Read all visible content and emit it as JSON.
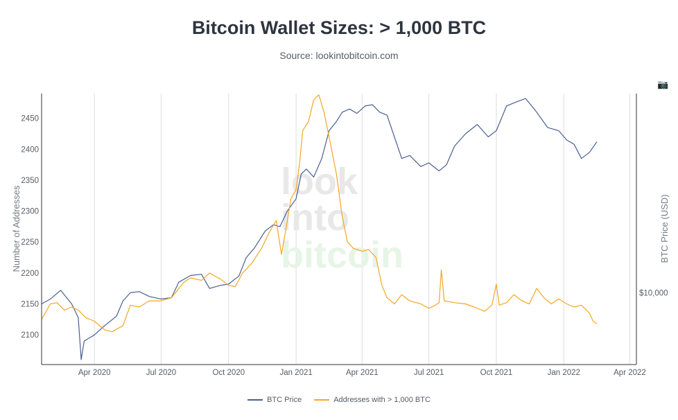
{
  "header": {
    "title": "Bitcoin Wallet Sizes: > 1,000 BTC",
    "subtitle": "Source: lookintobitcoin.com"
  },
  "watermark": [
    "look",
    "into",
    "bitcoin"
  ],
  "toolbar": {
    "camera_icon": "camera-icon"
  },
  "colors": {
    "btc_price": "#4a5f8e",
    "addresses": "#f5a623",
    "grid": "#dddddd",
    "axis": "#333333"
  },
  "chart_data": {
    "type": "line",
    "title": "Bitcoin Wallet Sizes: > 1,000 BTC",
    "xlabel": "",
    "ylabel": "Number of Addresses",
    "y2label": "BTC Price (USD)",
    "xlim": [
      "2020-01-20",
      "2022-04-10"
    ],
    "ylim": [
      2052,
      2490
    ],
    "y2_tick": {
      "label": "$10,000",
      "value_on_y": 2168
    },
    "x_ticks": [
      {
        "date": "2020-04-01",
        "label": "Apr 2020"
      },
      {
        "date": "2020-07-01",
        "label": "Jul 2020"
      },
      {
        "date": "2020-10-01",
        "label": "Oct 2020"
      },
      {
        "date": "2021-01-01",
        "label": "Jan 2021"
      },
      {
        "date": "2021-04-01",
        "label": "Apr 2021"
      },
      {
        "date": "2021-07-01",
        "label": "Jul 2021"
      },
      {
        "date": "2021-10-01",
        "label": "Oct 2021"
      },
      {
        "date": "2022-01-01",
        "label": "Jan 2022"
      },
      {
        "date": "2022-04-01",
        "label": "Apr 2022"
      }
    ],
    "y_ticks": [
      2100,
      2150,
      2200,
      2250,
      2300,
      2350,
      2400,
      2450
    ],
    "series": [
      {
        "name": "BTC Price",
        "note": "values expressed on the left-axis scale",
        "points": [
          [
            "2020-01-20",
            2150
          ],
          [
            "2020-02-01",
            2158
          ],
          [
            "2020-02-15",
            2172
          ],
          [
            "2020-03-01",
            2150
          ],
          [
            "2020-03-10",
            2128
          ],
          [
            "2020-03-14",
            2060
          ],
          [
            "2020-03-18",
            2090
          ],
          [
            "2020-04-01",
            2100
          ],
          [
            "2020-04-15",
            2115
          ],
          [
            "2020-05-01",
            2130
          ],
          [
            "2020-05-10",
            2155
          ],
          [
            "2020-05-20",
            2168
          ],
          [
            "2020-06-01",
            2170
          ],
          [
            "2020-06-15",
            2162
          ],
          [
            "2020-07-01",
            2158
          ],
          [
            "2020-07-15",
            2160
          ],
          [
            "2020-07-25",
            2185
          ],
          [
            "2020-08-10",
            2196
          ],
          [
            "2020-08-25",
            2198
          ],
          [
            "2020-09-05",
            2175
          ],
          [
            "2020-09-20",
            2180
          ],
          [
            "2020-10-01",
            2182
          ],
          [
            "2020-10-15",
            2195
          ],
          [
            "2020-10-25",
            2225
          ],
          [
            "2020-11-05",
            2240
          ],
          [
            "2020-11-20",
            2268
          ],
          [
            "2020-12-01",
            2278
          ],
          [
            "2020-12-10",
            2275
          ],
          [
            "2020-12-20",
            2300
          ],
          [
            "2021-01-01",
            2320
          ],
          [
            "2021-01-08",
            2360
          ],
          [
            "2021-01-15",
            2368
          ],
          [
            "2021-01-25",
            2355
          ],
          [
            "2021-02-05",
            2385
          ],
          [
            "2021-02-15",
            2430
          ],
          [
            "2021-02-25",
            2445
          ],
          [
            "2021-03-05",
            2460
          ],
          [
            "2021-03-15",
            2465
          ],
          [
            "2021-03-25",
            2458
          ],
          [
            "2021-04-05",
            2470
          ],
          [
            "2021-04-15",
            2472
          ],
          [
            "2021-04-25",
            2460
          ],
          [
            "2021-05-05",
            2455
          ],
          [
            "2021-05-15",
            2420
          ],
          [
            "2021-05-25",
            2385
          ],
          [
            "2021-06-05",
            2390
          ],
          [
            "2021-06-20",
            2372
          ],
          [
            "2021-07-01",
            2378
          ],
          [
            "2021-07-15",
            2365
          ],
          [
            "2021-07-25",
            2375
          ],
          [
            "2021-08-05",
            2405
          ],
          [
            "2021-08-20",
            2425
          ],
          [
            "2021-09-05",
            2440
          ],
          [
            "2021-09-20",
            2420
          ],
          [
            "2021-10-01",
            2430
          ],
          [
            "2021-10-15",
            2470
          ],
          [
            "2021-10-25",
            2475
          ],
          [
            "2021-11-10",
            2482
          ],
          [
            "2021-11-25",
            2460
          ],
          [
            "2021-12-10",
            2435
          ],
          [
            "2021-12-25",
            2430
          ],
          [
            "2022-01-05",
            2415
          ],
          [
            "2022-01-15",
            2408
          ],
          [
            "2022-01-25",
            2385
          ],
          [
            "2022-02-05",
            2395
          ],
          [
            "2022-02-15",
            2412
          ]
        ]
      },
      {
        "name": "Addresses with > 1,000 BTC",
        "points": [
          [
            "2020-01-20",
            2125
          ],
          [
            "2020-02-01",
            2150
          ],
          [
            "2020-02-10",
            2152
          ],
          [
            "2020-02-20",
            2140
          ],
          [
            "2020-03-01",
            2145
          ],
          [
            "2020-03-10",
            2140
          ],
          [
            "2020-03-20",
            2128
          ],
          [
            "2020-04-01",
            2122
          ],
          [
            "2020-04-15",
            2108
          ],
          [
            "2020-04-25",
            2105
          ],
          [
            "2020-05-10",
            2115
          ],
          [
            "2020-05-20",
            2148
          ],
          [
            "2020-06-01",
            2145
          ],
          [
            "2020-06-15",
            2155
          ],
          [
            "2020-07-01",
            2155
          ],
          [
            "2020-07-15",
            2160
          ],
          [
            "2020-08-01",
            2185
          ],
          [
            "2020-08-10",
            2192
          ],
          [
            "2020-08-25",
            2188
          ],
          [
            "2020-09-05",
            2200
          ],
          [
            "2020-09-20",
            2190
          ],
          [
            "2020-10-01",
            2180
          ],
          [
            "2020-10-10",
            2178
          ],
          [
            "2020-10-20",
            2200
          ],
          [
            "2020-11-01",
            2215
          ],
          [
            "2020-11-15",
            2240
          ],
          [
            "2020-11-25",
            2265
          ],
          [
            "2020-12-05",
            2285
          ],
          [
            "2020-12-12",
            2230
          ],
          [
            "2020-12-18",
            2270
          ],
          [
            "2020-12-25",
            2320
          ],
          [
            "2021-01-01",
            2335
          ],
          [
            "2021-01-06",
            2380
          ],
          [
            "2021-01-10",
            2430
          ],
          [
            "2021-01-18",
            2445
          ],
          [
            "2021-01-25",
            2480
          ],
          [
            "2021-02-01",
            2488
          ],
          [
            "2021-02-08",
            2460
          ],
          [
            "2021-02-15",
            2420
          ],
          [
            "2021-02-25",
            2360
          ],
          [
            "2021-03-05",
            2290
          ],
          [
            "2021-03-12",
            2250
          ],
          [
            "2021-03-20",
            2240
          ],
          [
            "2021-04-01",
            2235
          ],
          [
            "2021-04-10",
            2238
          ],
          [
            "2021-04-20",
            2225
          ],
          [
            "2021-04-28",
            2180
          ],
          [
            "2021-05-05",
            2160
          ],
          [
            "2021-05-15",
            2150
          ],
          [
            "2021-05-25",
            2165
          ],
          [
            "2021-06-05",
            2155
          ],
          [
            "2021-06-20",
            2150
          ],
          [
            "2021-07-01",
            2143
          ],
          [
            "2021-07-10",
            2148
          ],
          [
            "2021-07-15",
            2152
          ],
          [
            "2021-07-18",
            2205
          ],
          [
            "2021-07-22",
            2155
          ],
          [
            "2021-08-05",
            2152
          ],
          [
            "2021-08-20",
            2150
          ],
          [
            "2021-09-01",
            2145
          ],
          [
            "2021-09-15",
            2138
          ],
          [
            "2021-09-25",
            2148
          ],
          [
            "2021-10-01",
            2182
          ],
          [
            "2021-10-05",
            2148
          ],
          [
            "2021-10-15",
            2152
          ],
          [
            "2021-10-25",
            2165
          ],
          [
            "2021-11-05",
            2155
          ],
          [
            "2021-11-15",
            2150
          ],
          [
            "2021-11-25",
            2175
          ],
          [
            "2021-12-05",
            2160
          ],
          [
            "2021-12-15",
            2150
          ],
          [
            "2021-12-25",
            2158
          ],
          [
            "2022-01-05",
            2150
          ],
          [
            "2022-01-15",
            2145
          ],
          [
            "2022-01-25",
            2148
          ],
          [
            "2022-02-05",
            2135
          ],
          [
            "2022-02-10",
            2122
          ],
          [
            "2022-02-15",
            2118
          ]
        ]
      }
    ]
  }
}
